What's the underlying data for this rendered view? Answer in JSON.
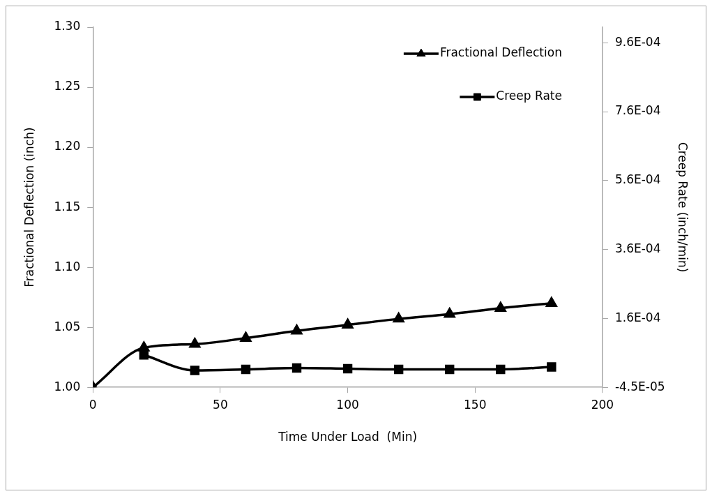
{
  "chart_data": {
    "type": "line",
    "xlabel": "Time Under Load  (Min)",
    "ylabel": "Fractional Deflection (inch)",
    "y2label": "Creep Rate (inch/min)",
    "x": [
      0,
      20,
      40,
      60,
      80,
      100,
      120,
      140,
      160,
      180
    ],
    "series": [
      {
        "name": "Fractional Deflection",
        "color": "#000000",
        "marker": "triangle",
        "values": [
          1.0,
          1.033,
          1.036,
          1.041,
          1.047,
          1.052,
          1.057,
          1.061,
          1.066,
          1.07
        ]
      },
      {
        "name": "Creep Rate",
        "color": "#000000",
        "marker": "square",
        "axis": "y2",
        "values": [
          null,
          4.9e-05,
          4e-06,
          7e-06,
          1.1e-05,
          9e-06,
          7e-06,
          7e-06,
          7e-06,
          1.4e-05
        ]
      }
    ],
    "xlim": [
      0,
      200
    ],
    "xticks": [
      0,
      50,
      100,
      150,
      200
    ],
    "ylim": [
      1.0,
      1.3
    ],
    "yticks": [
      {
        "value": 1.0,
        "label": "1.00"
      },
      {
        "value": 1.05,
        "label": "1.05"
      },
      {
        "value": 1.1,
        "label": "1.10"
      },
      {
        "value": 1.15,
        "label": "1.15"
      },
      {
        "value": 1.2,
        "label": "1.20"
      },
      {
        "value": 1.25,
        "label": "1.25"
      },
      {
        "value": 1.3,
        "label": "1.30"
      }
    ],
    "y2lim": [
      -4.5e-05,
      0.001
    ],
    "y2ticks": [
      {
        "value": -4.5e-05,
        "label": "-4.5E-05"
      },
      {
        "value": 0.000155,
        "label": "1.6E-04"
      },
      {
        "value": 0.000355,
        "label": "3.6E-04"
      },
      {
        "value": 0.000555,
        "label": "5.6E-04"
      },
      {
        "value": 0.000755,
        "label": "7.6E-04"
      },
      {
        "value": 0.000955,
        "label": "9.6E-04"
      }
    ],
    "grid": false,
    "legend": "top right",
    "line_style": "solid"
  }
}
